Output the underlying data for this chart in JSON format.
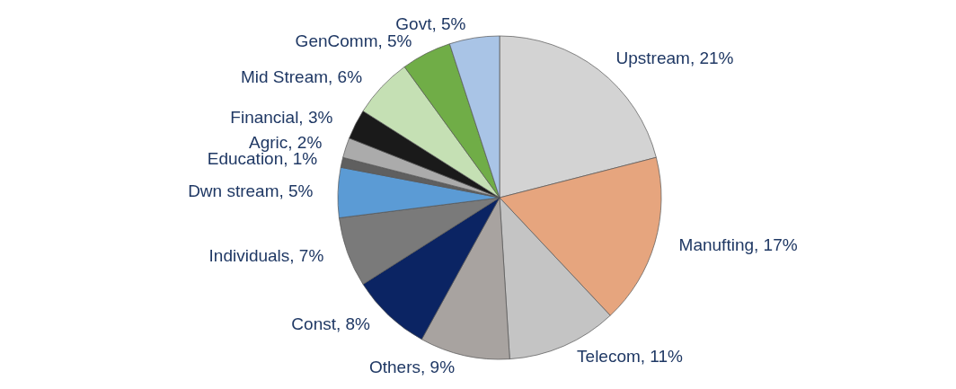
{
  "chart_data": {
    "type": "pie",
    "categories": [
      "Upstream",
      "Manufting",
      "Telecom",
      "Others",
      "Const",
      "Individuals",
      "Dwn stream",
      "Education",
      "Agric",
      "Financial",
      "Mid Stream",
      "GenComm",
      "Govt"
    ],
    "values": [
      21,
      17,
      11,
      9,
      8,
      7,
      5,
      1,
      2,
      3,
      6,
      5,
      5
    ],
    "value_labels": [
      ", 21%",
      ", 17%",
      ", 11%",
      ", 9%",
      ", 8%",
      ", 7%",
      ", 5%",
      ", 1%",
      ", 2%",
      ", 3%",
      ", 6%",
      ", 5%",
      ", 5%"
    ],
    "colors": [
      "#d3d3d3",
      "#e6a57e",
      "#c4c4c4",
      "#a8a3a0",
      "#0b2463",
      "#7a7a7a",
      "#5b9bd5",
      "#5f5f5f",
      "#ababab",
      "#1a1a1a",
      "#c5e0b4",
      "#70ad47",
      "#a9c4e6"
    ]
  }
}
